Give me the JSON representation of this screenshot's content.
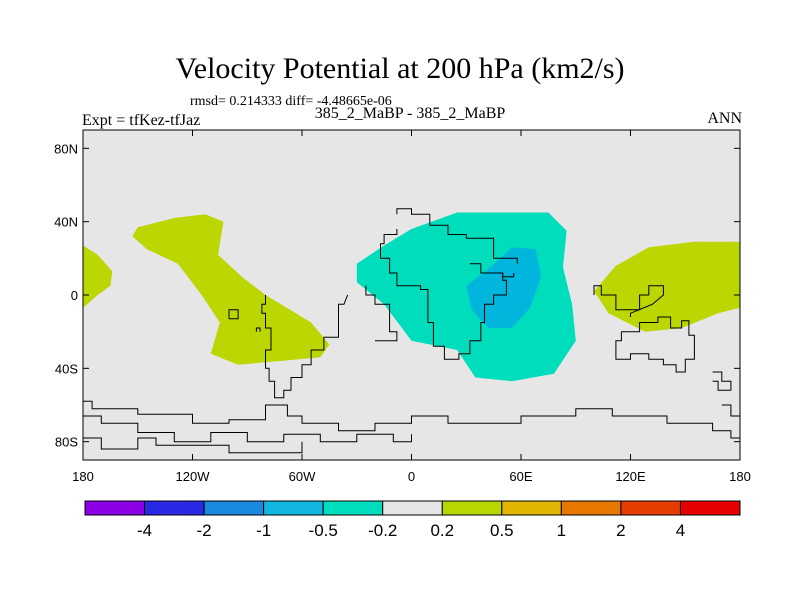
{
  "title": "Velocity Potential at 200 hPa (km2/s)",
  "stats": "rmsd= 0.214333 diff= -4.48665e-06",
  "left_label": "Expt = tfKez-tfJaz",
  "center_label": "385_2_MaBP - 385_2_MaBP",
  "right_label": "ANN",
  "map": {
    "projection": "cylindrical equidistant",
    "lon_range": [
      -180,
      180
    ],
    "lat_range": [
      -90,
      90
    ],
    "background_color": "#e6e6e6",
    "lat_ticks": [
      {
        "lat": 80,
        "label": "80N"
      },
      {
        "lat": 40,
        "label": "40N"
      },
      {
        "lat": 0,
        "label": "0"
      },
      {
        "lat": -40,
        "label": "40S"
      },
      {
        "lat": -80,
        "label": "80S"
      }
    ],
    "lon_ticks": [
      {
        "lon": -180,
        "label": "180"
      },
      {
        "lon": -120,
        "label": "120W"
      },
      {
        "lon": -60,
        "label": "60W"
      },
      {
        "lon": 0,
        "label": "0"
      },
      {
        "lon": 60,
        "label": "60E"
      },
      {
        "lon": 120,
        "label": "120E"
      },
      {
        "lon": 180,
        "label": "180"
      }
    ],
    "regions": [
      {
        "name": "positive-pacific",
        "color": "#bbd600",
        "range": "0.2 to 0.5",
        "points": [
          [
            -150,
            37
          ],
          [
            -130,
            42
          ],
          [
            -113,
            44
          ],
          [
            -103,
            40
          ],
          [
            -106,
            22
          ],
          [
            -93,
            10
          ],
          [
            -80,
            0
          ],
          [
            -55,
            -15
          ],
          [
            -45,
            -27
          ],
          [
            -50,
            -34
          ],
          [
            -72,
            -36
          ],
          [
            -95,
            -38
          ],
          [
            -110,
            -32
          ],
          [
            -105,
            -15
          ],
          [
            -115,
            0
          ],
          [
            -128,
            17
          ],
          [
            -145,
            25
          ],
          [
            -153,
            32
          ]
        ]
      },
      {
        "name": "positive-west-edge",
        "color": "#bbd600",
        "range": "0.2 to 0.5",
        "points": [
          [
            -180,
            27
          ],
          [
            -172,
            22
          ],
          [
            -164,
            13
          ],
          [
            -165,
            5
          ],
          [
            -172,
            0
          ],
          [
            -180,
            -7
          ]
        ]
      },
      {
        "name": "positive-east",
        "color": "#bbd600",
        "range": "0.2 to 0.5",
        "points": [
          [
            180,
            29
          ],
          [
            155,
            29
          ],
          [
            130,
            26
          ],
          [
            112,
            16
          ],
          [
            100,
            2
          ],
          [
            108,
            -10
          ],
          [
            128,
            -20
          ],
          [
            148,
            -18
          ],
          [
            168,
            -10
          ],
          [
            180,
            -7
          ]
        ]
      },
      {
        "name": "negative-africa",
        "color": "#00ddbd",
        "range": "-0.5 to -0.2",
        "points": [
          [
            -30,
            17
          ],
          [
            -15,
            27
          ],
          [
            0,
            36
          ],
          [
            25,
            45
          ],
          [
            52,
            45
          ],
          [
            75,
            45
          ],
          [
            85,
            35
          ],
          [
            83,
            15
          ],
          [
            88,
            -5
          ],
          [
            90,
            -25
          ],
          [
            78,
            -43
          ],
          [
            55,
            -47
          ],
          [
            35,
            -45
          ],
          [
            25,
            -30
          ],
          [
            0,
            -25
          ],
          [
            -15,
            -5
          ],
          [
            -30,
            7
          ]
        ]
      },
      {
        "name": "negative-core",
        "color": "#00b6dd",
        "range": "-1 to -0.5",
        "points": [
          [
            30,
            5
          ],
          [
            42,
            14
          ],
          [
            55,
            26
          ],
          [
            68,
            25
          ],
          [
            71,
            10
          ],
          [
            65,
            -7
          ],
          [
            55,
            -18
          ],
          [
            42,
            -18
          ],
          [
            33,
            -8
          ]
        ]
      }
    ],
    "coastlines": [
      [
        [
          -8,
          44
        ],
        [
          -8,
          47
        ],
        [
          0,
          47
        ],
        [
          0,
          44
        ],
        [
          10,
          44
        ],
        [
          10,
          38
        ],
        [
          20,
          38
        ],
        [
          20,
          33
        ],
        [
          30,
          33
        ],
        [
          30,
          31
        ],
        [
          45,
          31
        ],
        [
          45,
          20
        ],
        [
          58,
          20
        ],
        [
          58,
          17
        ]
      ],
      [
        [
          32,
          17
        ],
        [
          38,
          17
        ],
        [
          38,
          12
        ],
        [
          50,
          12
        ],
        [
          50,
          10
        ],
        [
          56,
          10
        ],
        [
          56,
          12
        ]
      ],
      [
        [
          -8,
          36
        ],
        [
          -8,
          33
        ],
        [
          -15,
          33
        ],
        [
          -15,
          28
        ],
        [
          -17,
          28
        ],
        [
          -17,
          20
        ],
        [
          -12,
          20
        ],
        [
          -12,
          12
        ],
        [
          -8,
          12
        ],
        [
          -8,
          5
        ],
        [
          5,
          5
        ],
        [
          5,
          3
        ],
        [
          9,
          3
        ],
        [
          9,
          -15
        ],
        [
          12,
          -15
        ],
        [
          12,
          -28
        ],
        [
          18,
          -28
        ],
        [
          18,
          -35
        ],
        [
          26,
          -35
        ],
        [
          26,
          -32
        ],
        [
          32,
          -32
        ],
        [
          32,
          -25
        ],
        [
          38,
          -25
        ],
        [
          38,
          -15
        ],
        [
          40,
          -15
        ],
        [
          40,
          -5
        ],
        [
          45,
          -5
        ],
        [
          45,
          0
        ],
        [
          52,
          0
        ],
        [
          52,
          8
        ],
        [
          50,
          8
        ],
        [
          50,
          12
        ]
      ],
      [
        [
          -25,
          5
        ],
        [
          -25,
          0
        ],
        [
          -20,
          0
        ],
        [
          -20,
          -5
        ],
        [
          -12,
          -5
        ],
        [
          -12,
          -20
        ],
        [
          -8,
          -20
        ],
        [
          -8,
          -25
        ],
        [
          -20,
          -25
        ]
      ],
      [
        [
          -35,
          0
        ],
        [
          -37,
          -5
        ],
        [
          -40,
          -5
        ],
        [
          -40,
          -23
        ],
        [
          -48,
          -23
        ],
        [
          -48,
          -30
        ],
        [
          -55,
          -30
        ],
        [
          -55,
          -38
        ],
        [
          -60,
          -38
        ],
        [
          -60,
          -45
        ],
        [
          -66,
          -45
        ],
        [
          -66,
          -52
        ],
        [
          -70,
          -52
        ],
        [
          -70,
          -56
        ],
        [
          -75,
          -56
        ],
        [
          -75,
          -47
        ],
        [
          -78,
          -47
        ],
        [
          -78,
          -40
        ],
        [
          -80,
          -40
        ],
        [
          -80,
          -30
        ],
        [
          -77,
          -30
        ],
        [
          -77,
          -18
        ],
        [
          -80,
          -18
        ],
        [
          -80,
          -10
        ],
        [
          -82,
          -10
        ],
        [
          -82,
          -5
        ],
        [
          -80,
          -5
        ],
        [
          -80,
          0
        ]
      ],
      [
        [
          -100,
          -13
        ],
        [
          -100,
          -8
        ],
        [
          -95,
          -8
        ],
        [
          -95,
          -13
        ],
        [
          -100,
          -13
        ]
      ],
      [
        [
          -85,
          -20
        ],
        [
          -85,
          -18
        ],
        [
          -83,
          -18
        ],
        [
          -83,
          -20
        ]
      ],
      [
        [
          100,
          0
        ],
        [
          100,
          5
        ],
        [
          104,
          5
        ],
        [
          104,
          0
        ],
        [
          112,
          0
        ],
        [
          112,
          -8
        ],
        [
          125,
          -8
        ],
        [
          125,
          0
        ],
        [
          130,
          0
        ],
        [
          130,
          5
        ],
        [
          138,
          5
        ],
        [
          138,
          0
        ],
        [
          132,
          -5
        ],
        [
          120,
          -10
        ],
        [
          120,
          -12
        ]
      ],
      [
        [
          115,
          -20
        ],
        [
          115,
          -25
        ],
        [
          112,
          -25
        ],
        [
          112,
          -35
        ],
        [
          120,
          -35
        ],
        [
          120,
          -32
        ],
        [
          130,
          -32
        ],
        [
          130,
          -35
        ],
        [
          138,
          -35
        ],
        [
          138,
          -38
        ],
        [
          145,
          -38
        ],
        [
          145,
          -42
        ],
        [
          150,
          -42
        ],
        [
          150,
          -35
        ],
        [
          155,
          -35
        ],
        [
          155,
          -22
        ],
        [
          152,
          -22
        ],
        [
          152,
          -14
        ],
        [
          148,
          -14
        ],
        [
          148,
          -18
        ],
        [
          142,
          -18
        ],
        [
          142,
          -12
        ],
        [
          135,
          -12
        ],
        [
          135,
          -15
        ],
        [
          125,
          -15
        ],
        [
          125,
          -20
        ],
        [
          115,
          -20
        ]
      ],
      [
        [
          165,
          -42
        ],
        [
          170,
          -42
        ],
        [
          170,
          -47
        ],
        [
          175,
          -47
        ],
        [
          175,
          -52
        ],
        [
          168,
          -52
        ],
        [
          168,
          -47
        ],
        [
          165,
          -47
        ]
      ],
      [
        [
          -180,
          -58
        ],
        [
          -175,
          -58
        ],
        [
          -175,
          -62
        ],
        [
          -150,
          -62
        ],
        [
          -150,
          -65
        ],
        [
          -120,
          -65
        ],
        [
          -120,
          -70
        ],
        [
          -100,
          -70
        ],
        [
          -100,
          -68
        ],
        [
          -80,
          -68
        ],
        [
          -80,
          -60
        ],
        [
          -68,
          -60
        ],
        [
          -68,
          -66
        ],
        [
          -60,
          -66
        ],
        [
          -60,
          -70
        ],
        [
          -40,
          -70
        ],
        [
          -40,
          -74
        ],
        [
          -20,
          -74
        ],
        [
          -20,
          -70
        ],
        [
          0,
          -70
        ],
        [
          0,
          -66
        ],
        [
          20,
          -66
        ],
        [
          20,
          -70
        ],
        [
          60,
          -70
        ],
        [
          60,
          -66
        ],
        [
          90,
          -66
        ],
        [
          90,
          -62
        ],
        [
          110,
          -62
        ],
        [
          110,
          -66
        ],
        [
          140,
          -66
        ],
        [
          140,
          -70
        ],
        [
          165,
          -70
        ],
        [
          165,
          -74
        ],
        [
          175,
          -74
        ],
        [
          175,
          -78
        ],
        [
          180,
          -78
        ]
      ],
      [
        [
          -180,
          -66
        ],
        [
          -170,
          -66
        ],
        [
          -170,
          -70
        ],
        [
          -150,
          -70
        ],
        [
          -150,
          -75
        ],
        [
          -130,
          -75
        ],
        [
          -130,
          -80
        ],
        [
          -110,
          -80
        ],
        [
          -110,
          -75
        ],
        [
          -90,
          -75
        ],
        [
          -90,
          -80
        ],
        [
          -70,
          -80
        ],
        [
          -70,
          -76
        ],
        [
          -50,
          -76
        ],
        [
          -50,
          -80
        ],
        [
          -30,
          -80
        ],
        [
          -30,
          -76
        ],
        [
          -10,
          -76
        ],
        [
          -10,
          -80
        ],
        [
          0,
          -80
        ],
        [
          0,
          -76
        ]
      ],
      [
        [
          -180,
          -78
        ],
        [
          -170,
          -78
        ],
        [
          -170,
          -84
        ],
        [
          -150,
          -84
        ],
        [
          -150,
          -78
        ],
        [
          -140,
          -78
        ],
        [
          -140,
          -82
        ],
        [
          -100,
          -82
        ],
        [
          -100,
          -86
        ],
        [
          -60,
          -86
        ],
        [
          -60,
          -80
        ]
      ],
      [
        [
          170,
          -60
        ],
        [
          175,
          -60
        ],
        [
          175,
          -66
        ],
        [
          180,
          -66
        ]
      ]
    ]
  },
  "colorbar": {
    "colors": [
      "#8b00e6",
      "#2a2ae6",
      "#1a8ae0",
      "#12b6e0",
      "#00dcbe",
      "#e6e6e6",
      "#b8d600",
      "#e0b400",
      "#e67800",
      "#e63c00",
      "#e60000"
    ],
    "labels": [
      "-4",
      "-2",
      "-1",
      "-0.5",
      "-0.2",
      "0.2",
      "0.5",
      "1",
      "2",
      "4"
    ]
  }
}
